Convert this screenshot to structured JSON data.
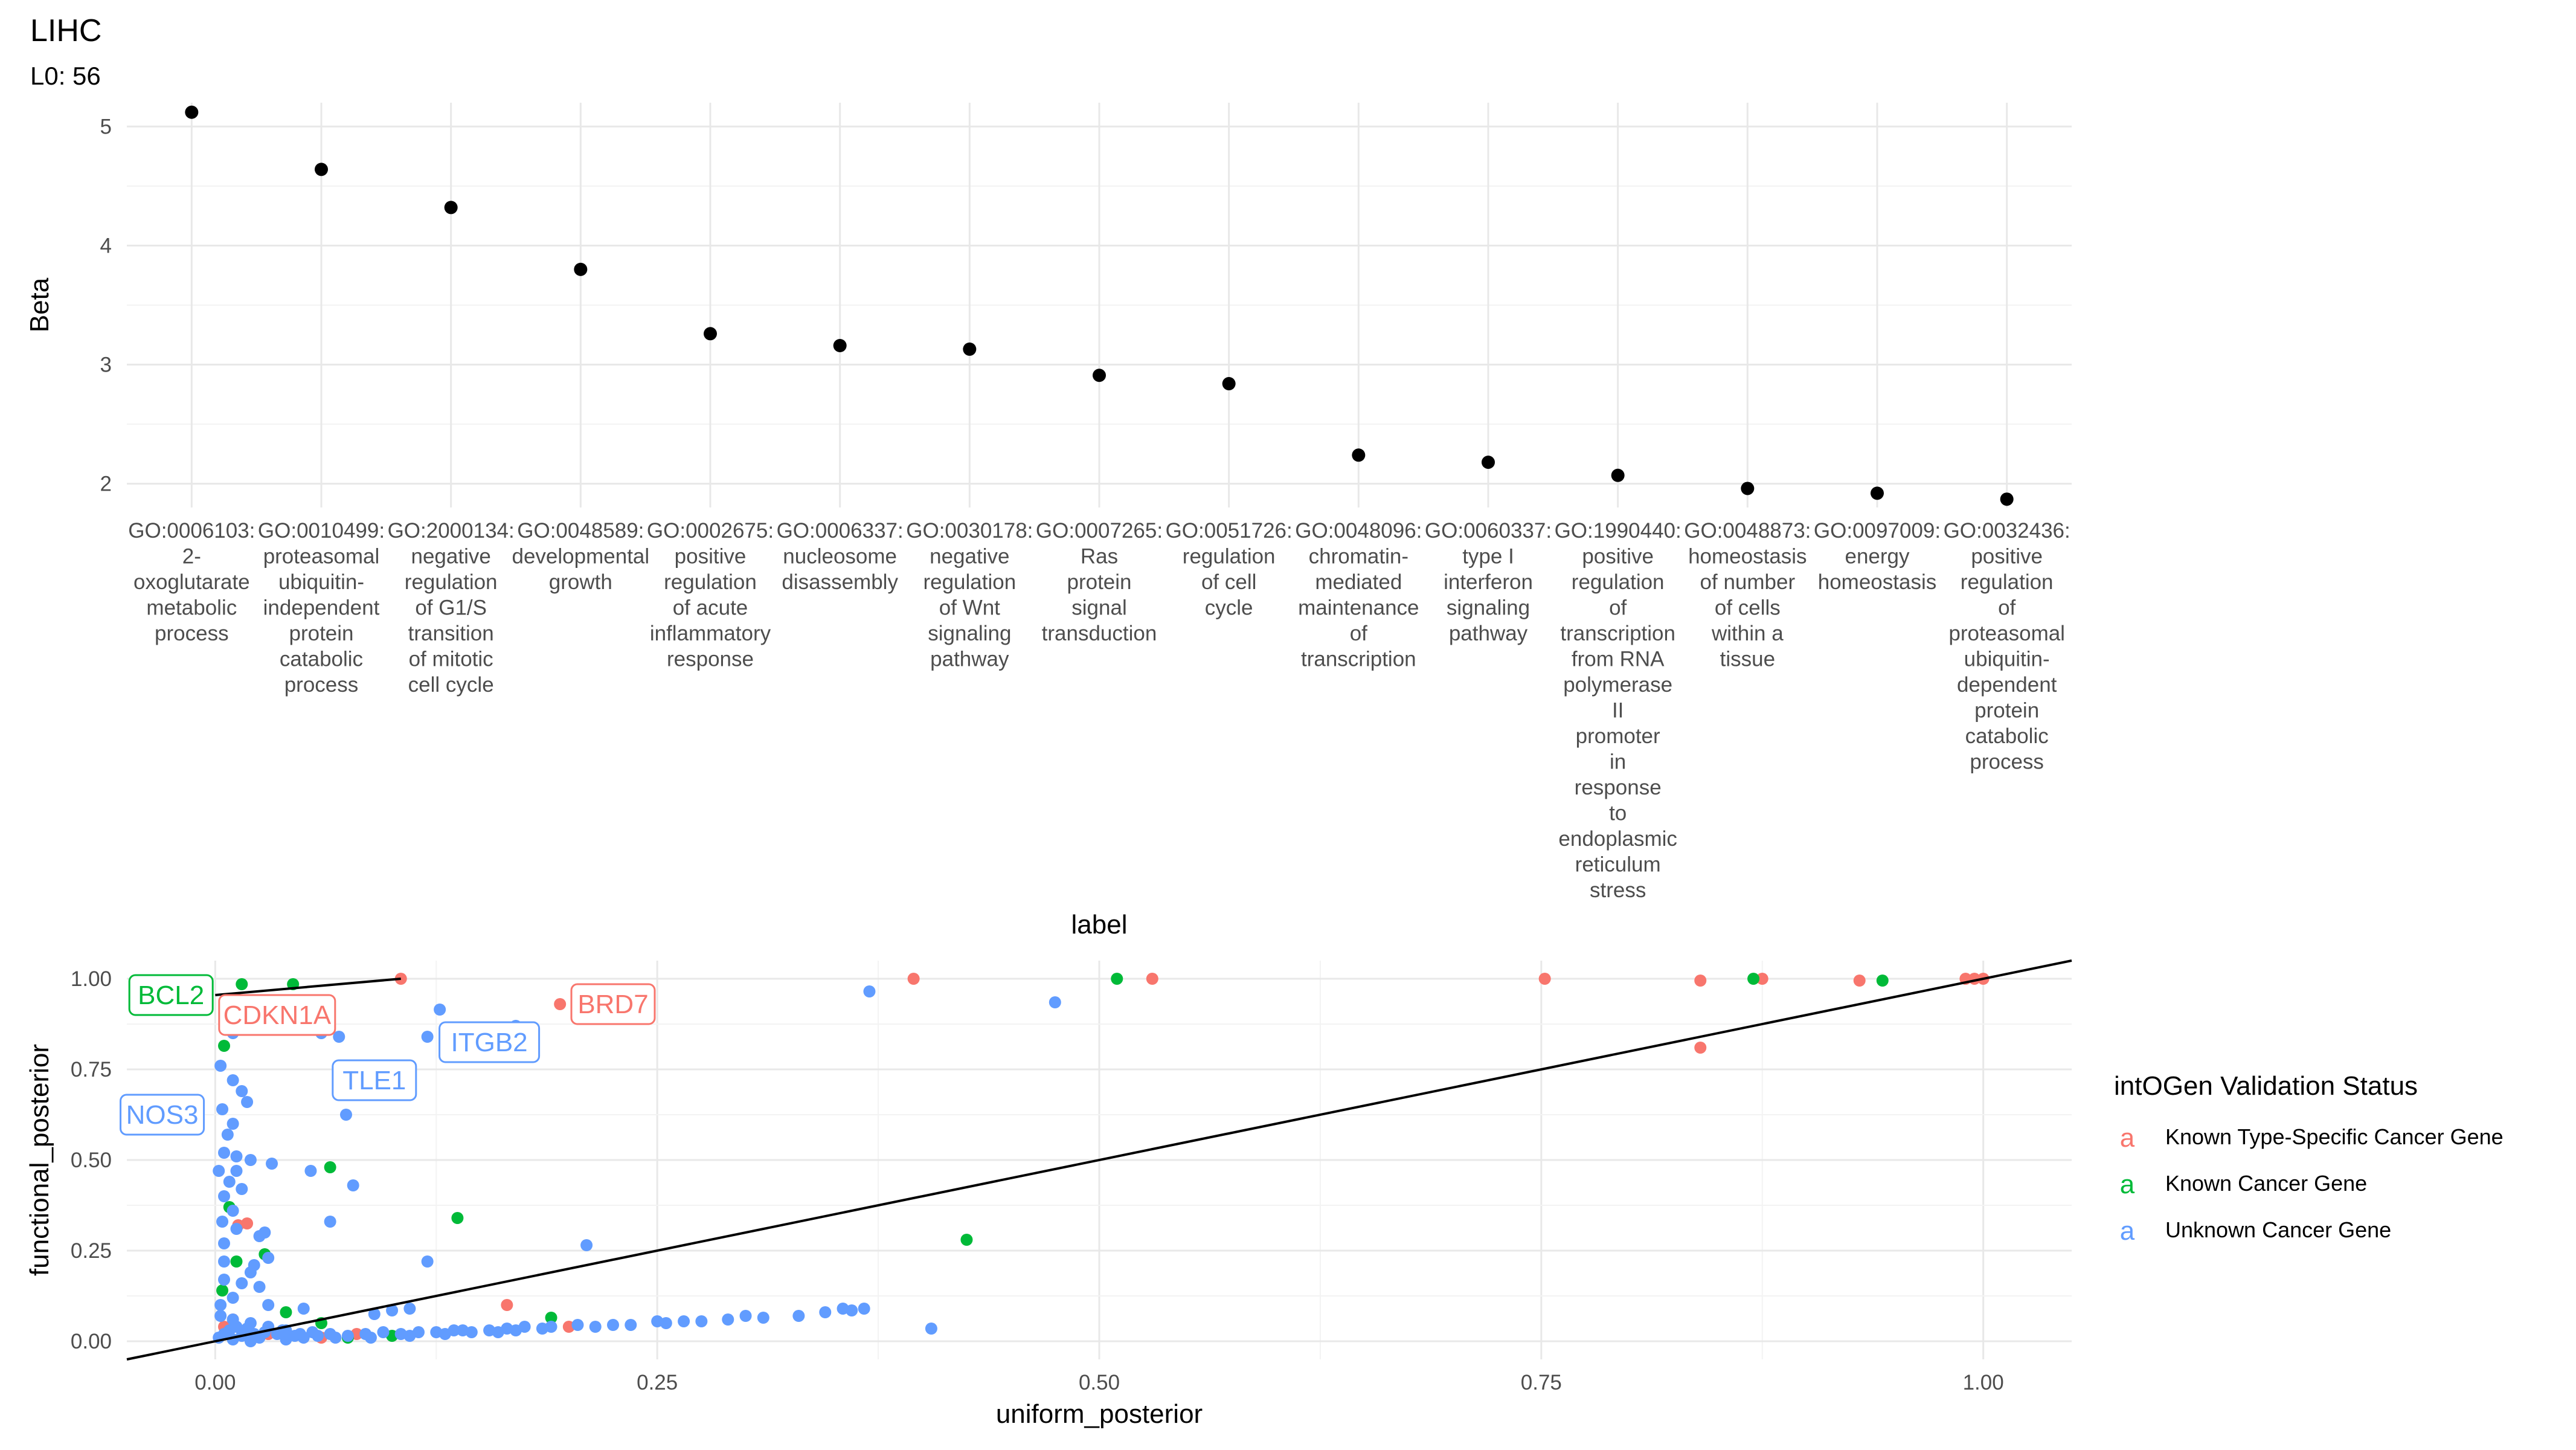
{
  "title": "LIHC",
  "subtitle": "L0: 56",
  "chart_data": [
    {
      "type": "scatter",
      "xlabel": "label",
      "ylabel": "Beta",
      "ylim": [
        1.8,
        5.2
      ],
      "yticks": [
        2,
        3,
        4,
        5
      ],
      "categories": [
        [
          "GO:0006103:",
          "2-",
          "oxoglutarate",
          "metabolic",
          "process"
        ],
        [
          "GO:0010499:",
          "proteasomal",
          "ubiquitin-",
          "independent",
          "protein",
          "catabolic",
          "process"
        ],
        [
          "GO:2000134:",
          "negative",
          "regulation",
          "of G1/S",
          "transition",
          "of mitotic",
          "cell cycle"
        ],
        [
          "GO:0048589:",
          "developmental",
          "growth"
        ],
        [
          "GO:0002675:",
          "positive",
          "regulation",
          "of acute",
          "inflammatory",
          "response"
        ],
        [
          "GO:0006337:",
          "nucleosome",
          "disassembly"
        ],
        [
          "GO:0030178:",
          "negative",
          "regulation",
          "of Wnt",
          "signaling",
          "pathway"
        ],
        [
          "GO:0007265:",
          "Ras",
          "protein",
          "signal",
          "transduction"
        ],
        [
          "GO:0051726:",
          "regulation",
          "of cell",
          "cycle"
        ],
        [
          "GO:0048096:",
          "chromatin-",
          "mediated",
          "maintenance",
          "of",
          "transcription"
        ],
        [
          "GO:0060337:",
          "type I",
          "interferon",
          "signaling",
          "pathway"
        ],
        [
          "GO:1990440:",
          "positive",
          "regulation",
          "of",
          "transcription",
          "from RNA",
          "polymerase",
          "II",
          "promoter",
          "in",
          "response",
          "to",
          "endoplasmic",
          "reticulum",
          "stress"
        ],
        [
          "GO:0048873:",
          "homeostasis",
          "of number",
          "of cells",
          "within a",
          "tissue"
        ],
        [
          "GO:0097009:",
          "energy",
          "homeostasis"
        ],
        [
          "GO:0032436:",
          "positive",
          "regulation",
          "of",
          "proteasomal",
          "ubiquitin-",
          "dependent",
          "protein",
          "catabolic",
          "process"
        ]
      ],
      "values": [
        5.12,
        4.64,
        4.32,
        3.8,
        3.26,
        3.16,
        3.13,
        2.91,
        2.84,
        2.24,
        2.18,
        2.07,
        1.96,
        1.92,
        1.87
      ]
    },
    {
      "type": "scatter",
      "xlabel": "uniform_posterior",
      "ylabel": "functional_posterior",
      "xlim": [
        -0.05,
        1.05
      ],
      "ylim": [
        -0.05,
        1.05
      ],
      "xticks": [
        0.0,
        0.25,
        0.5,
        0.75,
        1.0
      ],
      "xtick_labels": [
        "0.00",
        "0.25",
        "0.50",
        "0.75",
        "1.00"
      ],
      "yticks": [
        0.0,
        0.25,
        0.5,
        0.75,
        1.0
      ],
      "ytick_labels": [
        "0.00",
        "0.25",
        "0.50",
        "0.75",
        "1.00"
      ],
      "lines": [
        {
          "x": [
            -0.05,
            1.05
          ],
          "y": [
            -0.05,
            1.05
          ]
        },
        {
          "x": [
            0.0,
            0.105
          ],
          "y": [
            0.955,
            1.0
          ]
        }
      ],
      "legend": {
        "title": "intOGen Validation Status",
        "placement": "right",
        "key_glyph": "a",
        "entries": [
          {
            "label": "Known Type-Specific Cancer Gene",
            "color": "#F8766D"
          },
          {
            "label": "Known Cancer Gene",
            "color": "#00BA38"
          },
          {
            "label": "Unknown Cancer Gene",
            "color": "#619CFF"
          }
        ]
      },
      "series": [
        {
          "status": "Known Type-Specific Cancer Gene",
          "color": "#F8766D",
          "points": [
            [
              0.105,
              1.0
            ],
            [
              0.395,
              1.0
            ],
            [
              0.53,
              1.0
            ],
            [
              0.752,
              1.0
            ],
            [
              0.84,
              0.995
            ],
            [
              0.875,
              1.0
            ],
            [
              0.93,
              0.995
            ],
            [
              0.99,
              1.0
            ],
            [
              0.995,
              1.0
            ],
            [
              1.0,
              1.0
            ],
            [
              0.84,
              0.81
            ],
            [
              0.195,
              0.93
            ],
            [
              0.013,
              0.32
            ],
            [
              0.018,
              0.325
            ],
            [
              0.165,
              0.1
            ],
            [
              0.08,
              0.02
            ],
            [
              0.2,
              0.04
            ],
            [
              0.03,
              0.02
            ],
            [
              0.005,
              0.04
            ],
            [
              0.01,
              0.06
            ],
            [
              0.06,
              0.01
            ]
          ]
        },
        {
          "status": "Known Cancer Gene",
          "color": "#00BA38",
          "points": [
            [
              0.015,
              0.985
            ],
            [
              0.044,
              0.985
            ],
            [
              0.51,
              1.0
            ],
            [
              0.87,
              1.0
            ],
            [
              0.943,
              0.995
            ],
            [
              0.005,
              0.815
            ],
            [
              0.065,
              0.48
            ],
            [
              0.137,
              0.34
            ],
            [
              0.425,
              0.28
            ],
            [
              0.028,
              0.24
            ],
            [
              0.19,
              0.065
            ],
            [
              0.1,
              0.015
            ],
            [
              0.075,
              0.01
            ],
            [
              0.008,
              0.37
            ],
            [
              0.012,
              0.22
            ],
            [
              0.004,
              0.14
            ],
            [
              0.04,
              0.08
            ],
            [
              0.06,
              0.05
            ]
          ]
        },
        {
          "status": "Unknown Cancer Gene",
          "color": "#619CFF",
          "points": [
            [
              0.37,
              0.965
            ],
            [
              0.475,
              0.935
            ],
            [
              0.127,
              0.915
            ],
            [
              0.17,
              0.87
            ],
            [
              0.12,
              0.84
            ],
            [
              0.01,
              0.85
            ],
            [
              0.015,
              0.87
            ],
            [
              0.02,
              0.86
            ],
            [
              0.06,
              0.85
            ],
            [
              0.07,
              0.84
            ],
            [
              0.003,
              0.76
            ],
            [
              0.01,
              0.72
            ],
            [
              0.015,
              0.69
            ],
            [
              0.018,
              0.66
            ],
            [
              0.004,
              0.64
            ],
            [
              0.01,
              0.6
            ],
            [
              0.007,
              0.57
            ],
            [
              0.074,
              0.625
            ],
            [
              0.005,
              0.52
            ],
            [
              0.012,
              0.51
            ],
            [
              0.02,
              0.5
            ],
            [
              0.032,
              0.49
            ],
            [
              0.012,
              0.47
            ],
            [
              0.002,
              0.47
            ],
            [
              0.054,
              0.47
            ],
            [
              0.078,
              0.43
            ],
            [
              0.008,
              0.44
            ],
            [
              0.015,
              0.42
            ],
            [
              0.005,
              0.4
            ],
            [
              0.01,
              0.36
            ],
            [
              0.004,
              0.33
            ],
            [
              0.012,
              0.31
            ],
            [
              0.005,
              0.27
            ],
            [
              0.025,
              0.29
            ],
            [
              0.028,
              0.3
            ],
            [
              0.065,
              0.33
            ],
            [
              0.21,
              0.265
            ],
            [
              0.005,
              0.22
            ],
            [
              0.02,
              0.19
            ],
            [
              0.022,
              0.21
            ],
            [
              0.03,
              0.23
            ],
            [
              0.12,
              0.22
            ],
            [
              0.005,
              0.17
            ],
            [
              0.015,
              0.16
            ],
            [
              0.025,
              0.15
            ],
            [
              0.01,
              0.12
            ],
            [
              0.003,
              0.1
            ],
            [
              0.03,
              0.1
            ],
            [
              0.05,
              0.09
            ],
            [
              0.1,
              0.085
            ],
            [
              0.11,
              0.09
            ],
            [
              0.09,
              0.075
            ],
            [
              0.003,
              0.07
            ],
            [
              0.01,
              0.06
            ],
            [
              0.02,
              0.05
            ],
            [
              0.03,
              0.04
            ],
            [
              0.04,
              0.03
            ],
            [
              0.005,
              0.02
            ],
            [
              0.015,
              0.015
            ],
            [
              0.025,
              0.01
            ],
            [
              0.035,
              0.02
            ],
            [
              0.045,
              0.015
            ],
            [
              0.055,
              0.025
            ],
            [
              0.065,
              0.02
            ],
            [
              0.075,
              0.015
            ],
            [
              0.085,
              0.02
            ],
            [
              0.095,
              0.025
            ],
            [
              0.105,
              0.02
            ],
            [
              0.115,
              0.025
            ],
            [
              0.125,
              0.025
            ],
            [
              0.135,
              0.03
            ],
            [
              0.145,
              0.025
            ],
            [
              0.155,
              0.03
            ],
            [
              0.165,
              0.035
            ],
            [
              0.175,
              0.04
            ],
            [
              0.185,
              0.035
            ],
            [
              0.205,
              0.045
            ],
            [
              0.215,
              0.04
            ],
            [
              0.225,
              0.045
            ],
            [
              0.235,
              0.045
            ],
            [
              0.255,
              0.05
            ],
            [
              0.265,
              0.055
            ],
            [
              0.275,
              0.055
            ],
            [
              0.29,
              0.06
            ],
            [
              0.3,
              0.07
            ],
            [
              0.31,
              0.065
            ],
            [
              0.33,
              0.07
            ],
            [
              0.345,
              0.08
            ],
            [
              0.355,
              0.09
            ],
            [
              0.36,
              0.085
            ],
            [
              0.367,
              0.09
            ],
            [
              0.405,
              0.035
            ],
            [
              0.25,
              0.055
            ],
            [
              0.17,
              0.03
            ],
            [
              0.14,
              0.03
            ],
            [
              0.04,
              0.005
            ],
            [
              0.05,
              0.01
            ],
            [
              0.01,
              0.005
            ],
            [
              0.02,
              0.0
            ],
            [
              0.002,
              0.01
            ],
            [
              0.008,
              0.03
            ],
            [
              0.012,
              0.04
            ],
            [
              0.018,
              0.035
            ],
            [
              0.022,
              0.02
            ],
            [
              0.028,
              0.025
            ],
            [
              0.038,
              0.03
            ],
            [
              0.048,
              0.02
            ],
            [
              0.058,
              0.015
            ],
            [
              0.068,
              0.01
            ],
            [
              0.088,
              0.01
            ],
            [
              0.11,
              0.015
            ],
            [
              0.13,
              0.02
            ],
            [
              0.16,
              0.025
            ],
            [
              0.19,
              0.04
            ]
          ]
        }
      ],
      "annotations": [
        {
          "text": "BCL2",
          "x": -0.025,
          "y": 0.955,
          "color": "#00BA38"
        },
        {
          "text": "CDKN1A",
          "x": 0.035,
          "y": 0.9,
          "color": "#F8766D"
        },
        {
          "text": "BRD7",
          "x": 0.225,
          "y": 0.93,
          "color": "#F8766D"
        },
        {
          "text": "ITGB2",
          "x": 0.155,
          "y": 0.825,
          "color": "#619CFF"
        },
        {
          "text": "TLE1",
          "x": 0.09,
          "y": 0.72,
          "color": "#619CFF"
        },
        {
          "text": "NOS3",
          "x": -0.03,
          "y": 0.625,
          "color": "#619CFF"
        }
      ]
    }
  ]
}
